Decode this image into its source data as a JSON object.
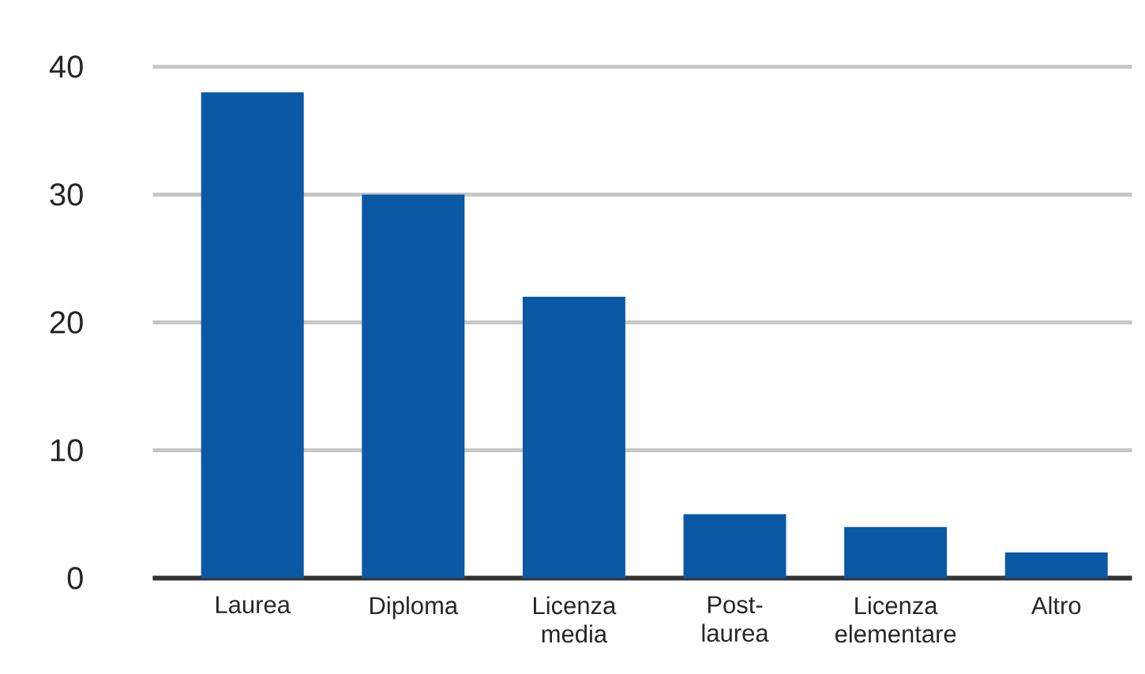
{
  "chart_data": {
    "type": "bar",
    "categories": [
      "Laurea",
      "Diploma",
      "Licenza media",
      "Post-laurea",
      "Licenza elementare",
      "Altro"
    ],
    "values": [
      38,
      30,
      22,
      5,
      4,
      2
    ],
    "color": "#0b58a4",
    "ylim": [
      0,
      40
    ],
    "yticks": [
      0,
      10,
      20,
      30,
      40
    ],
    "grid": "y"
  }
}
